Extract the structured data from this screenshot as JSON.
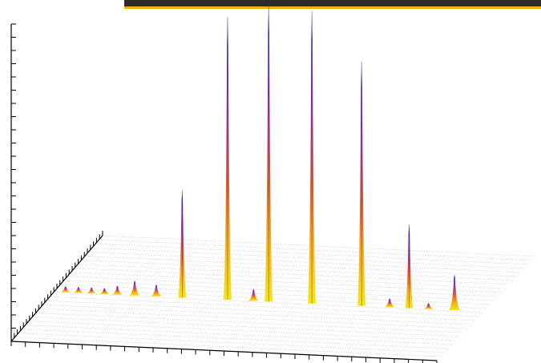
{
  "chart_data": {
    "type": "3d-surface",
    "title": "",
    "xlabel": "",
    "ylabel": "",
    "zlabel": "",
    "grid": true,
    "colormap": [
      "#f5e61a",
      "#f7b21a",
      "#e8612c",
      "#b13a8a",
      "#6a2fcf",
      "#3a1a8a"
    ],
    "accent_color": "#f0b400",
    "peaks": [
      {
        "x": 0.03,
        "z": 0.02
      },
      {
        "x": 0.06,
        "z": 0.02
      },
      {
        "x": 0.09,
        "z": 0.02
      },
      {
        "x": 0.12,
        "z": 0.02
      },
      {
        "x": 0.15,
        "z": 0.03
      },
      {
        "x": 0.19,
        "z": 0.05
      },
      {
        "x": 0.24,
        "z": 0.04
      },
      {
        "x": 0.3,
        "z": 0.36
      },
      {
        "x": 0.405,
        "z": 0.95
      },
      {
        "x": 0.465,
        "z": 0.04
      },
      {
        "x": 0.5,
        "z": 1.0
      },
      {
        "x": 0.6,
        "z": 0.98
      },
      {
        "x": 0.715,
        "z": 0.82
      },
      {
        "x": 0.78,
        "z": 0.03
      },
      {
        "x": 0.825,
        "z": 0.28
      },
      {
        "x": 0.87,
        "z": 0.02
      },
      {
        "x": 0.93,
        "z": 0.12
      }
    ]
  }
}
